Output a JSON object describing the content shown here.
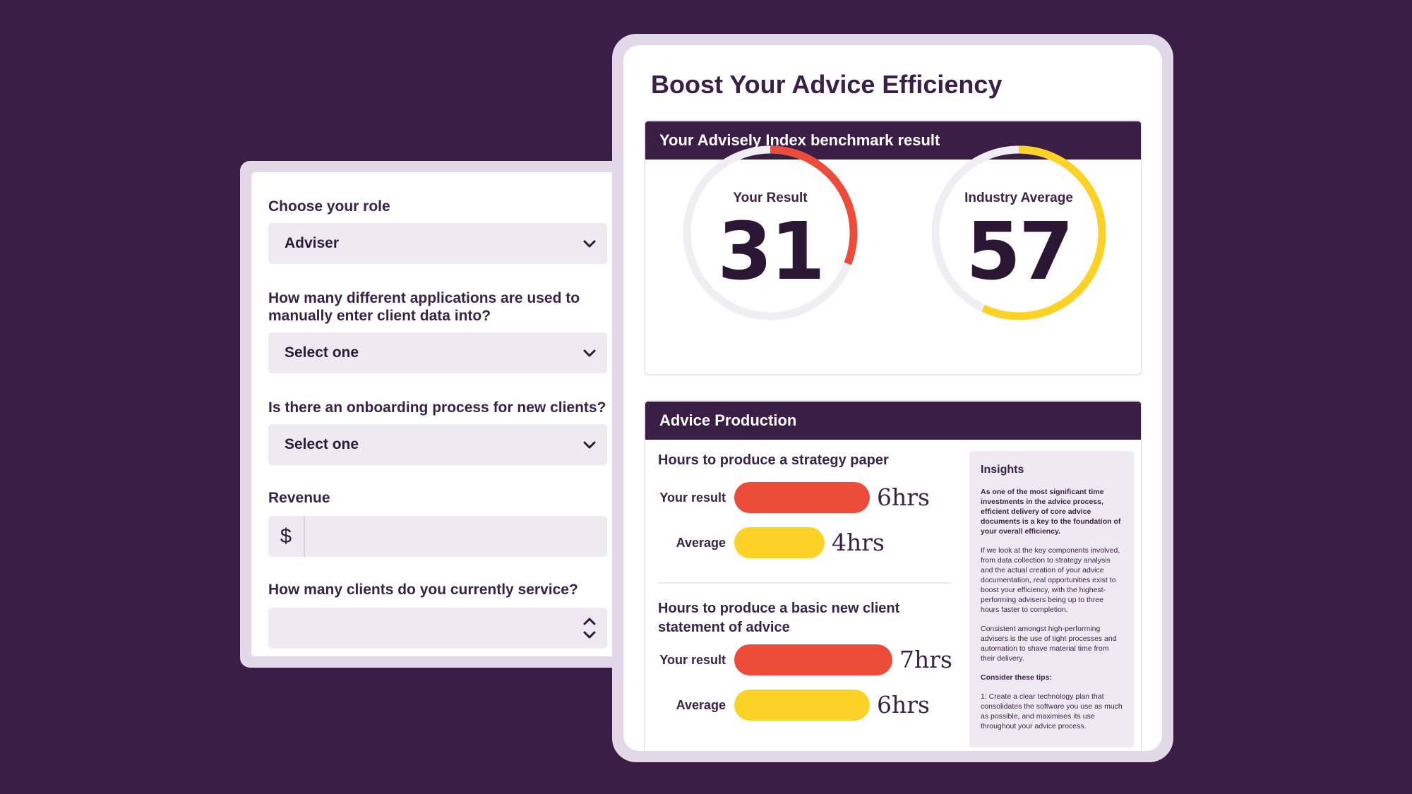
{
  "colors": {
    "background": "#3b1e46",
    "card_border": "#e3d8e8",
    "your_result": "#ec4c38",
    "average": "#fcd227",
    "gauge_track": "#f1edf4"
  },
  "form": {
    "role": {
      "label": "Choose your role",
      "value": "Adviser"
    },
    "applications": {
      "label": "How many different applications are used to manually enter client data into?",
      "value": "Select one"
    },
    "onboarding": {
      "label": "Is there an onboarding process for new clients?",
      "value": "Select one"
    },
    "revenue": {
      "label": "Revenue",
      "currency": "$",
      "value": ""
    },
    "clients": {
      "label": "How many clients do you currently service?",
      "value": ""
    }
  },
  "report": {
    "title": "Boost Your Advice Efficiency",
    "benchmark": {
      "header": "Your Advisely Index benchmark result",
      "your_result": {
        "label": "Your Result",
        "value": 31,
        "display": "31"
      },
      "industry_average": {
        "label": "Industry Average",
        "value": 57,
        "display": "57"
      }
    },
    "production": {
      "header": "Advice Production",
      "strategy": {
        "title": "Hours to produce a strategy paper",
        "your_label": "Your result",
        "your_value": 6,
        "your_display": "6hrs",
        "avg_label": "Average",
        "avg_value": 4,
        "avg_display": "4hrs"
      },
      "soa": {
        "title": "Hours to produce a basic new client statement of advice",
        "your_label": "Your result",
        "your_value": 7,
        "your_display": "7hrs",
        "avg_label": "Average",
        "avg_value": 6,
        "avg_display": "6hrs"
      }
    },
    "insights": {
      "title": "Insights",
      "p1": "As one of the most significant time investments in the advice process, efficient delivery of core advice documents is a key to the foundation of your overall efficiency.",
      "p2": "If we look at the key components involved, from data collection to strategy analysis and the actual creation of your advice documentation, real opportunities exist to boost your efficiency, with the highest-performing advisers being up to three hours faster to completion.",
      "p3": "Consistent amongst high-performing advisers is the use of tight processes and automation to shave material time from their delivery.",
      "p4": "Consider these tips:",
      "p5": "1: Create a clear technology plan that consolidates the software you use as much as possible, and maximises its use throughout your advice process."
    }
  }
}
